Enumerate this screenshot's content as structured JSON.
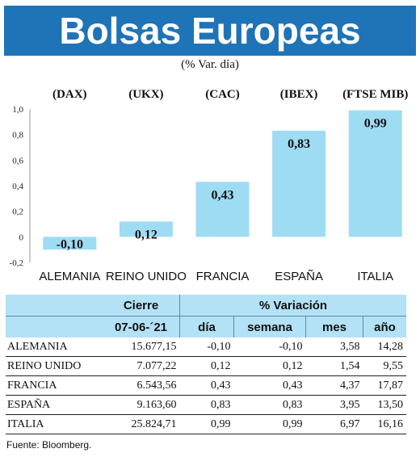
{
  "title": "Bolsas Europeas",
  "subtitle": "(% Var. día)",
  "chart_data": {
    "type": "bar",
    "categories": [
      "ALEMANIA",
      "REINO UNIDO",
      "FRANCIA",
      "ESPAÑA",
      "ITALIA"
    ],
    "indices": [
      "(DAX)",
      "(UKX)",
      "(CAC)",
      "(IBEX)",
      "(FTSE MIB)"
    ],
    "values": [
      -0.1,
      0.12,
      0.43,
      0.83,
      0.99
    ],
    "value_labels": [
      "-0,10",
      "0,12",
      "0,43",
      "0,83",
      "0,99"
    ],
    "yticks": [
      "1,0",
      "0,8",
      "0,6",
      "0,4",
      "0,2",
      "0",
      "-0,2"
    ],
    "ylim": [
      -0.2,
      1.0
    ],
    "bar_color": "#9edcf4"
  },
  "table": {
    "header_cierre": "Cierre",
    "header_variacion": "% Variación",
    "date": "07-06-´21",
    "col_dia": "día",
    "col_semana": "semana",
    "col_mes": "mes",
    "col_anio": "año",
    "rows": [
      {
        "country": "ALEMANIA",
        "cierre": "15.677,15",
        "dia": "-0,10",
        "semana": "-0,10",
        "mes": "3,58",
        "anio": "14,28"
      },
      {
        "country": "REINO UNIDO",
        "cierre": "7.077,22",
        "dia": "0,12",
        "semana": "0,12",
        "mes": "1,54",
        "anio": "9,55"
      },
      {
        "country": "FRANCIA",
        "cierre": "6.543,56",
        "dia": "0,43",
        "semana": "0,43",
        "mes": "4,37",
        "anio": "17,87"
      },
      {
        "country": "ESPAÑA",
        "cierre": "9.163,60",
        "dia": "0,83",
        "semana": "0,83",
        "mes": "3,95",
        "anio": "13,50"
      },
      {
        "country": "ITALIA",
        "cierre": "25.824,71",
        "dia": "0,99",
        "semana": "0,99",
        "mes": "6,97",
        "anio": "16,16"
      }
    ]
  },
  "source": "Fuente: Bloomberg."
}
